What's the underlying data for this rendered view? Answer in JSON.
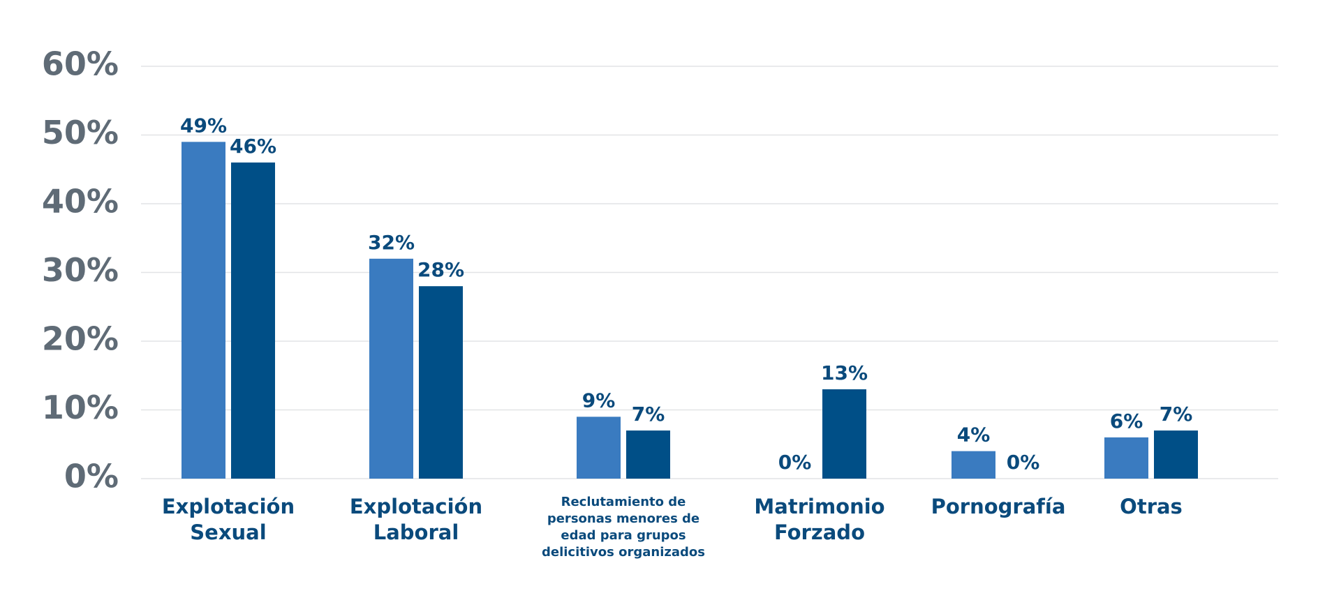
{
  "chart_data": {
    "type": "bar",
    "categories": [
      "Explotación Sexual",
      "Explotación Laboral",
      "Reclutamiento de personas menores de edad para grupos delicitivos organizados",
      "Matrimonio Forzado",
      "Pornografía",
      "Otras"
    ],
    "series": [
      {
        "color": "#3a7bc0",
        "values": [
          49,
          32,
          9,
          0,
          4,
          6
        ],
        "value_labels": [
          "49%",
          "32%",
          "9%",
          "0%",
          "4%",
          "6%"
        ]
      },
      {
        "color": "#004f87",
        "values": [
          46,
          28,
          7,
          13,
          0,
          7
        ],
        "value_labels": [
          "46%",
          "28%",
          "7%",
          "13%",
          "0%",
          "7%"
        ]
      }
    ],
    "ylim": [
      0,
      60
    ],
    "yticks": [
      {
        "value": 0,
        "label": "0%"
      },
      {
        "value": 10,
        "label": "10%"
      },
      {
        "value": 20,
        "label": "20%"
      },
      {
        "value": 30,
        "label": "30%"
      },
      {
        "value": 40,
        "label": "40%"
      },
      {
        "value": 50,
        "label": "50%"
      },
      {
        "value": 60,
        "label": "60%"
      }
    ],
    "grid": true
  }
}
